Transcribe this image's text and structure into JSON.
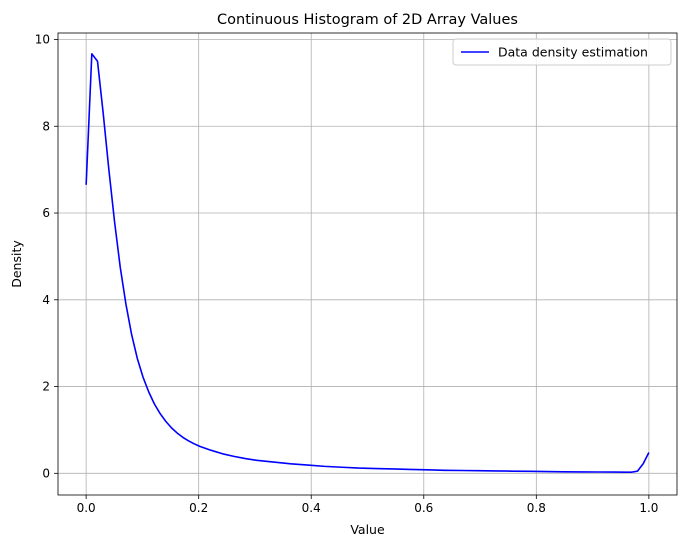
{
  "chart_data": {
    "type": "line",
    "title": "Continuous Histogram of 2D Array Values",
    "xlabel": "Value",
    "ylabel": "Density",
    "xlim": [
      -0.05,
      1.05
    ],
    "ylim": [
      -0.5,
      10.15
    ],
    "xticks": [
      0.0,
      0.2,
      0.4,
      0.6,
      0.8,
      1.0
    ],
    "xtick_labels": [
      "0.0",
      "0.2",
      "0.4",
      "0.6",
      "0.8",
      "1.0"
    ],
    "yticks": [
      0,
      2,
      4,
      6,
      8,
      10
    ],
    "ytick_labels": [
      "0",
      "2",
      "4",
      "6",
      "8",
      "10"
    ],
    "grid": true,
    "legend_position": "top-right",
    "series": [
      {
        "name": "Data density estimation",
        "color": "#0000ff",
        "x": [
          0.0,
          0.0101,
          0.0202,
          0.0303,
          0.0404,
          0.0505,
          0.0606,
          0.0707,
          0.0808,
          0.0909,
          0.101,
          0.1111,
          0.1212,
          0.1313,
          0.1414,
          0.1515,
          0.1616,
          0.1717,
          0.1818,
          0.1919,
          0.202,
          0.2222,
          0.2424,
          0.2626,
          0.2828,
          0.303,
          0.3333,
          0.3636,
          0.3939,
          0.4242,
          0.4545,
          0.4848,
          0.5152,
          0.5455,
          0.5758,
          0.6061,
          0.6364,
          0.6667,
          0.697,
          0.7273,
          0.7576,
          0.7879,
          0.8182,
          0.8485,
          0.8788,
          0.9091,
          0.9394,
          0.9596,
          0.9697,
          0.9798,
          0.9899,
          1.0
        ],
        "y": [
          6.65,
          9.67,
          9.5,
          8.3,
          7.0,
          5.8,
          4.75,
          3.9,
          3.2,
          2.65,
          2.22,
          1.88,
          1.6,
          1.38,
          1.2,
          1.05,
          0.93,
          0.83,
          0.75,
          0.68,
          0.62,
          0.53,
          0.45,
          0.39,
          0.34,
          0.3,
          0.26,
          0.22,
          0.19,
          0.16,
          0.14,
          0.12,
          0.11,
          0.1,
          0.09,
          0.08,
          0.07,
          0.065,
          0.06,
          0.055,
          0.05,
          0.045,
          0.04,
          0.035,
          0.032,
          0.03,
          0.028,
          0.027,
          0.027,
          0.05,
          0.22,
          0.48
        ]
      }
    ]
  }
}
